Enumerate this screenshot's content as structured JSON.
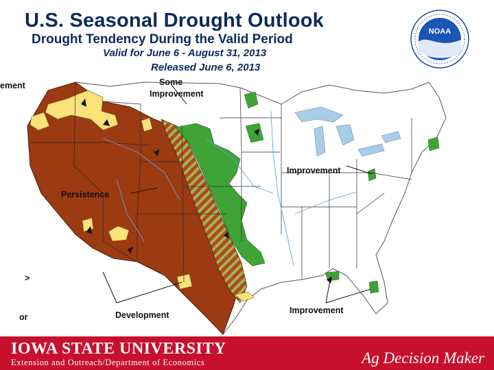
{
  "header": {
    "title": "U.S. Seasonal Drought Outlook",
    "subtitle": "Drought Tendency During the Valid Period",
    "valid_period": "Valid for June 6 - August 31, 2013",
    "released": "Released June 6, 2013"
  },
  "logo": {
    "name": "NOAA",
    "text": "NOAA"
  },
  "map": {
    "labels": {
      "some_improvement_line1": "Some",
      "some_improvement_line2": "Improvement",
      "persistence": "Persistence",
      "improvement_east": "Improvement",
      "improvement_south": "Improvement",
      "development": "Development",
      "legend_cut_top": "ement",
      "legend_cut_bottom": "or"
    },
    "colors": {
      "persistence": "#9c3a12",
      "development": "#f9e27a",
      "improvement": "#3fa336",
      "some_improvement_hatch": "#9aba45",
      "water": "#a8cde8"
    }
  },
  "footer": {
    "university": "IOWA STATE UNIVERSITY",
    "department": "Extension and Outreach/Department of Economics",
    "brand": "Ag Decision Maker",
    "color": "#c8102e"
  }
}
